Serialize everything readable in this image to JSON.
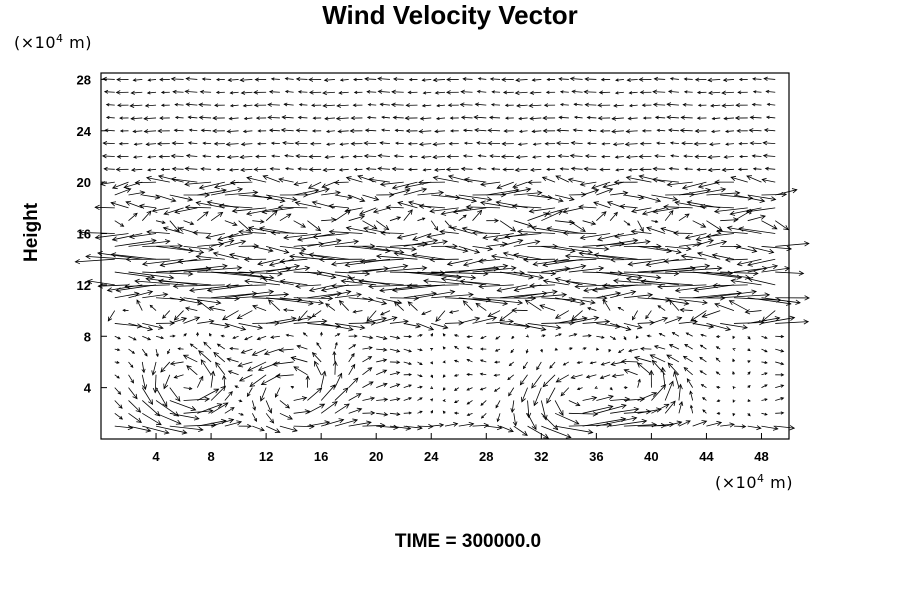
{
  "chart_data": {
    "type": "vector-field",
    "title": "Wind Velocity Vector",
    "ylabel": "Height",
    "x_unit": {
      "prefix": "(×10",
      "exp": "4",
      "suffix": " m)"
    },
    "y_unit": {
      "prefix": "(×10",
      "exp": "4",
      "suffix": " m)"
    },
    "xlim": [
      0,
      50
    ],
    "ylim": [
      0,
      28.5
    ],
    "x_ticks": [
      4,
      8,
      12,
      16,
      20,
      24,
      28,
      32,
      36,
      40,
      44,
      48
    ],
    "y_ticks": [
      4,
      8,
      12,
      16,
      20,
      24,
      28
    ],
    "grid": false,
    "grid_spacing_x": 1,
    "grid_spacing_y": 1,
    "jet_core_height": [
      11,
      20
    ],
    "strong_layer_rows": [
      {
        "y": 9,
        "u": 1.6
      },
      {
        "y": 11,
        "u": 2.4
      },
      {
        "y": 12,
        "u": 2.8
      },
      {
        "y": 13,
        "u": 2.8
      },
      {
        "y": 14,
        "u": 2.4
      },
      {
        "y": 15,
        "u": 2.0
      },
      {
        "y": 16,
        "u": 2.0
      },
      {
        "y": 18,
        "u": 1.8
      },
      {
        "y": 19,
        "u": 1.6
      },
      {
        "y": 20,
        "u": 1.4
      }
    ],
    "low_level_vortices": [
      {
        "x": 6,
        "y": 4,
        "strength": 1.6
      },
      {
        "x": 14,
        "y": 4,
        "strength": 1.4
      },
      {
        "x": 34,
        "y": 3,
        "strength": 1.6
      },
      {
        "x": 39,
        "y": 4,
        "strength": 1.4
      }
    ]
  },
  "footer": {
    "time_label": "TIME = 300000.0"
  }
}
